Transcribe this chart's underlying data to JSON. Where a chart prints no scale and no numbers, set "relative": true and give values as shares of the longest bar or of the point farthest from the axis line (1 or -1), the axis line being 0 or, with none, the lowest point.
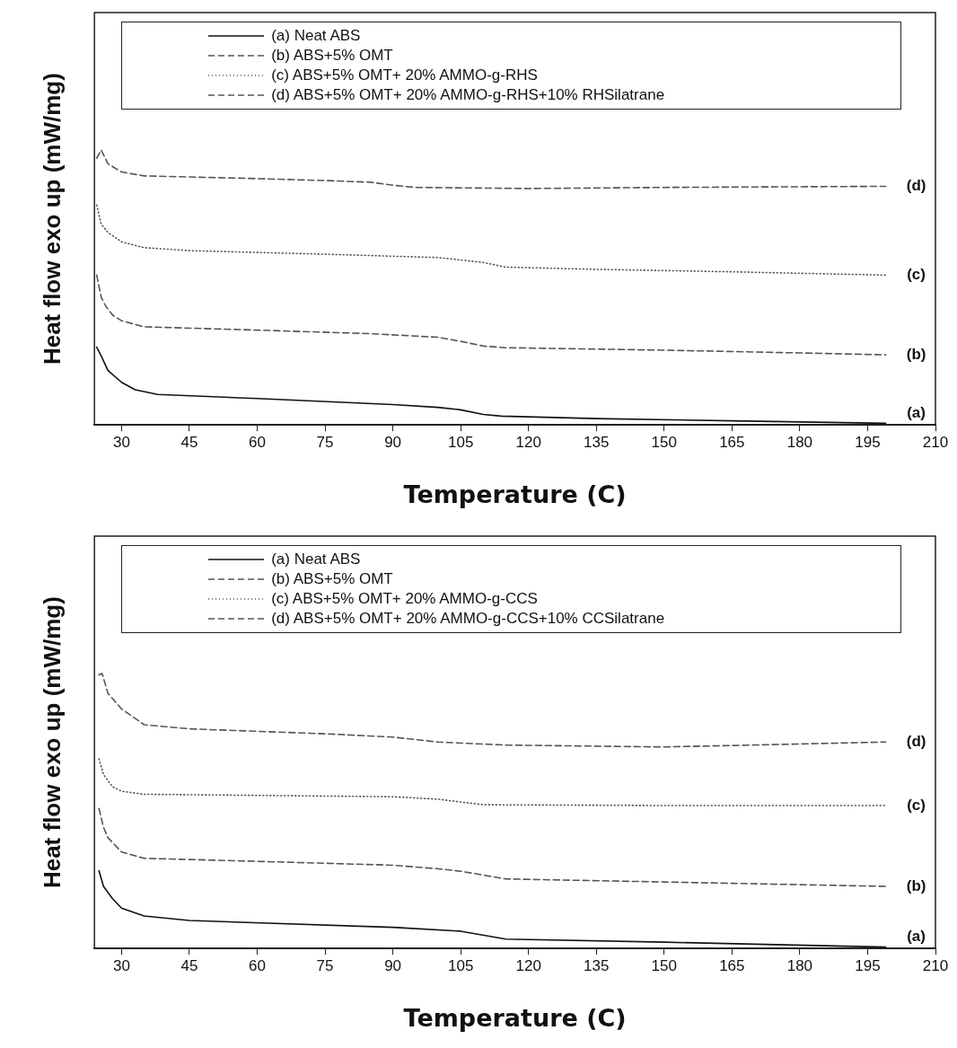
{
  "chart_data": [
    {
      "type": "line",
      "relative": true,
      "xlabel": "Temperature (C)",
      "ylabel": "Heat flow exo up (mW/mg)",
      "xlim": [
        24,
        210
      ],
      "xticks": [
        30,
        45,
        60,
        75,
        90,
        105,
        120,
        135,
        150,
        165,
        180,
        195,
        210
      ],
      "grid": false,
      "legend": "top",
      "marker": "none",
      "series": [
        {
          "name": "(a) Neat ABS",
          "color": "#111111",
          "line_style": "solid",
          "x": [
            24.5,
            25.5,
            27,
            30,
            33,
            38,
            60,
            90,
            100,
            105,
            110,
            114,
            135,
            165,
            199
          ],
          "values": [
            0.283,
            0.251,
            0.198,
            0.155,
            0.128,
            0.111,
            0.096,
            0.074,
            0.064,
            0.055,
            0.038,
            0.032,
            0.023,
            0.015,
            0.006
          ]
        },
        {
          "name": "(b) ABS+5% OMT",
          "color": "#555555",
          "line_style": "dashed",
          "x": [
            24.5,
            25.5,
            26.5,
            28,
            30,
            35,
            60,
            85,
            100,
            105,
            110,
            115,
            150,
            180,
            199
          ],
          "values": [
            0.545,
            0.464,
            0.432,
            0.4,
            0.379,
            0.357,
            0.345,
            0.332,
            0.319,
            0.304,
            0.287,
            0.281,
            0.272,
            0.262,
            0.255
          ]
        },
        {
          "name": "(c) ABS+5% OMT+ 20% AMMO-g-RHS",
          "color": "#555555",
          "line_style": "dotted",
          "x": [
            24.5,
            25.5,
            27,
            30,
            35,
            45,
            75,
            100,
            110,
            115,
            135,
            165,
            199
          ],
          "values": [
            0.8,
            0.73,
            0.7,
            0.666,
            0.645,
            0.634,
            0.621,
            0.609,
            0.591,
            0.574,
            0.566,
            0.557,
            0.545
          ]
        },
        {
          "name": "(d) ABS+5% OMT+ 20% AMMO-g-RHS+10% RHSilatrane",
          "color": "#555555",
          "line_style": "dashed",
          "x": [
            24.5,
            25.5,
            27,
            30,
            35,
            60,
            75,
            85,
            90,
            95,
            120,
            150,
            199
          ],
          "values": [
            0.97,
            1.0,
            0.95,
            0.92,
            0.906,
            0.896,
            0.889,
            0.883,
            0.872,
            0.864,
            0.86,
            0.864,
            0.868
          ]
        }
      ],
      "annotations": [
        "(a)",
        "(b)",
        "(c)",
        "(d)"
      ]
    },
    {
      "type": "line",
      "relative": true,
      "xlabel": "Temperature (C)",
      "ylabel": "Heat flow exo up (mW/mg)",
      "xlim": [
        24,
        210
      ],
      "xticks": [
        30,
        45,
        60,
        75,
        90,
        105,
        120,
        135,
        150,
        165,
        180,
        195,
        210
      ],
      "grid": false,
      "legend": "top",
      "marker": "none",
      "series": [
        {
          "name": "(a) Neat ABS",
          "color": "#111111",
          "line_style": "solid",
          "x": [
            25,
            26,
            28,
            30,
            35,
            45,
            90,
            105,
            115,
            150,
            199
          ],
          "values": [
            0.283,
            0.226,
            0.181,
            0.147,
            0.118,
            0.102,
            0.077,
            0.063,
            0.034,
            0.023,
            0.005
          ]
        },
        {
          "name": "(b) ABS+5% OMT",
          "color": "#555555",
          "line_style": "dashed",
          "x": [
            25,
            26,
            27,
            30,
            35,
            60,
            90,
            100,
            105,
            115,
            150,
            199
          ],
          "values": [
            0.509,
            0.441,
            0.403,
            0.351,
            0.328,
            0.317,
            0.303,
            0.29,
            0.281,
            0.253,
            0.242,
            0.226
          ]
        },
        {
          "name": "(c) ABS+5% OMT+ 20% AMMO-g-CCS",
          "color": "#555555",
          "line_style": "dotted",
          "x": [
            25,
            26,
            28,
            30,
            35,
            90,
            100,
            110,
            150,
            199
          ],
          "values": [
            0.69,
            0.633,
            0.588,
            0.572,
            0.561,
            0.552,
            0.543,
            0.523,
            0.52,
            0.52
          ]
        },
        {
          "name": "(d) ABS+5% OMT+ 20% AMMO-g-CCS+10% CCSilatrane",
          "color": "#555555",
          "line_style": "dashed",
          "x": [
            25,
            25.7,
            27,
            30,
            35,
            45,
            75,
            90,
            100,
            115,
            150,
            199
          ],
          "values": [
            0.995,
            1.0,
            0.928,
            0.871,
            0.814,
            0.799,
            0.781,
            0.769,
            0.751,
            0.74,
            0.733,
            0.751
          ]
        }
      ],
      "annotations": [
        "(a)",
        "(b)",
        "(c)",
        "(d)"
      ]
    }
  ]
}
